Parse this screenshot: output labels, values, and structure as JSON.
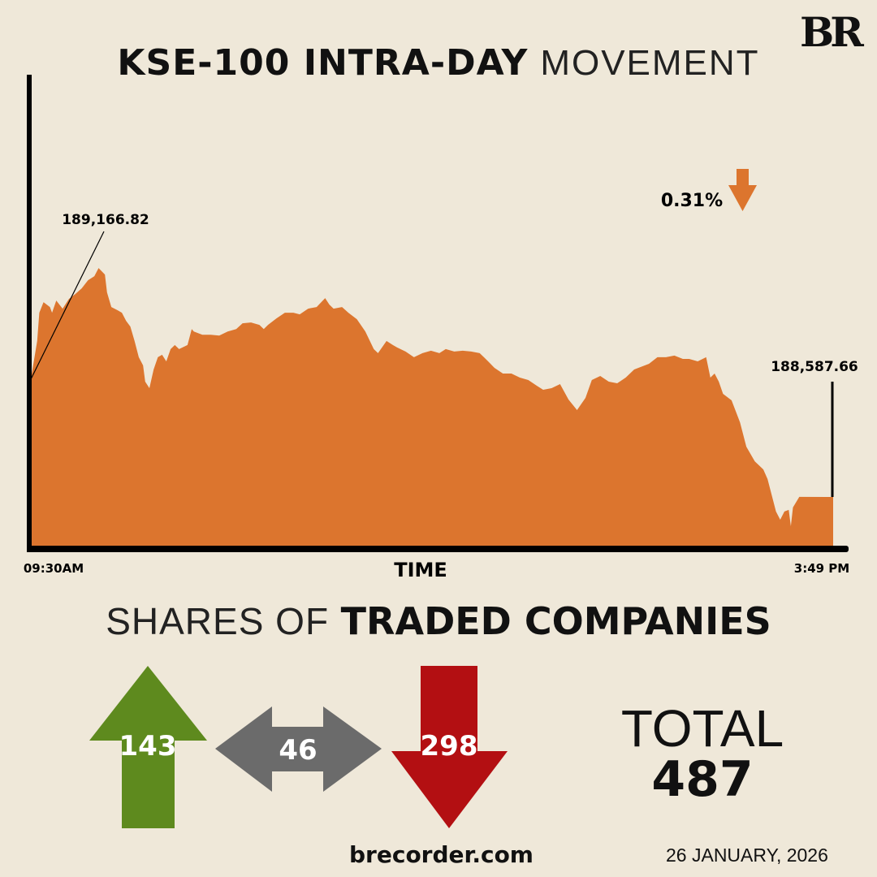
{
  "header": {
    "title_bold": "KSE-100 INTRA-DAY",
    "title_light": "MOVEMENT",
    "logo": "BR"
  },
  "colors": {
    "background": "#efe8d9",
    "area": "#dc752e",
    "up": "#5e8a1e",
    "unchanged": "#6b6b6b",
    "down": "#b30f12"
  },
  "chart_data": {
    "type": "area",
    "xlabel": "TIME",
    "ylabel": "",
    "x_tick_labels": [
      "09:30AM",
      "3:49 PM"
    ],
    "grid": false,
    "ylim": [
      188348,
      190653
    ],
    "annotations": {
      "open": "189,166.82",
      "close": "188,587.66",
      "change": "0.31%",
      "change_direction": "down-arrow-icon"
    },
    "series": [
      {
        "points": [
          [
            "09:30",
            189167
          ],
          [
            "09:33",
            189355
          ],
          [
            "09:34",
            189494
          ],
          [
            "09:36",
            189546
          ],
          [
            "09:39",
            189522
          ],
          [
            "09:40",
            189494
          ],
          [
            "09:42",
            189554
          ],
          [
            "09:45",
            189514
          ],
          [
            "09:48",
            189562
          ],
          [
            "09:51",
            189586
          ],
          [
            "09:54",
            189614
          ],
          [
            "09:57",
            189654
          ],
          [
            "10:00",
            189674
          ],
          [
            "10:02",
            189714
          ],
          [
            "10:05",
            189682
          ],
          [
            "10:06",
            189594
          ],
          [
            "10:08",
            189522
          ],
          [
            "10:11",
            189506
          ],
          [
            "10:13",
            189494
          ],
          [
            "10:15",
            189454
          ],
          [
            "10:17",
            189426
          ],
          [
            "10:19",
            189355
          ],
          [
            "10:21",
            189275
          ],
          [
            "10:23",
            189235
          ],
          [
            "10:24",
            189155
          ],
          [
            "10:26",
            189123
          ],
          [
            "10:28",
            189215
          ],
          [
            "10:30",
            189275
          ],
          [
            "10:32",
            189287
          ],
          [
            "10:34",
            189255
          ],
          [
            "10:36",
            189315
          ],
          [
            "10:38",
            189335
          ],
          [
            "10:40",
            189315
          ],
          [
            "10:44",
            189335
          ],
          [
            "10:46",
            189414
          ],
          [
            "10:47",
            189402
          ],
          [
            "10:51",
            189386
          ],
          [
            "10:55",
            189386
          ],
          [
            "10:59",
            189382
          ],
          [
            "11:03",
            189402
          ],
          [
            "11:07",
            189414
          ],
          [
            "11:10",
            189442
          ],
          [
            "11:14",
            189446
          ],
          [
            "11:18",
            189434
          ],
          [
            "11:20",
            189414
          ],
          [
            "11:22",
            189434
          ],
          [
            "11:26",
            189466
          ],
          [
            "11:30",
            189494
          ],
          [
            "11:34",
            189494
          ],
          [
            "11:37",
            189486
          ],
          [
            "11:41",
            189514
          ],
          [
            "11:45",
            189522
          ],
          [
            "11:49",
            189566
          ],
          [
            "11:51",
            189534
          ],
          [
            "11:53",
            189514
          ],
          [
            "11:57",
            189522
          ],
          [
            "12:00",
            189494
          ],
          [
            "12:04",
            189462
          ],
          [
            "12:08",
            189402
          ],
          [
            "12:12",
            189315
          ],
          [
            "12:14",
            189295
          ],
          [
            "12:18",
            189355
          ],
          [
            "12:21",
            189335
          ],
          [
            "12:23",
            189323
          ],
          [
            "12:27",
            189303
          ],
          [
            "12:31",
            189275
          ],
          [
            "12:35",
            189295
          ],
          [
            "12:39",
            189307
          ],
          [
            "12:43",
            189295
          ],
          [
            "12:46",
            189315
          ],
          [
            "12:50",
            189303
          ],
          [
            "12:54",
            189307
          ],
          [
            "12:58",
            189303
          ],
          [
            "13:02",
            189295
          ],
          [
            "13:04",
            189275
          ],
          [
            "13:06",
            189255
          ],
          [
            "13:09",
            189223
          ],
          [
            "13:13",
            189195
          ],
          [
            "13:17",
            189195
          ],
          [
            "13:21",
            189175
          ],
          [
            "13:25",
            189163
          ],
          [
            "13:29",
            189135
          ],
          [
            "13:32",
            189115
          ],
          [
            "13:36",
            189123
          ],
          [
            "13:40",
            189143
          ],
          [
            "13:44",
            189067
          ],
          [
            "13:48",
            189015
          ],
          [
            "13:52",
            189075
          ],
          [
            "13:55",
            189163
          ],
          [
            "13:59",
            189183
          ],
          [
            "14:03",
            189155
          ],
          [
            "14:07",
            189147
          ],
          [
            "14:11",
            189175
          ],
          [
            "14:15",
            189215
          ],
          [
            "14:18",
            189227
          ],
          [
            "14:22",
            189243
          ],
          [
            "14:26",
            189275
          ],
          [
            "14:30",
            189275
          ],
          [
            "14:34",
            189283
          ],
          [
            "14:38",
            189267
          ],
          [
            "14:41",
            189267
          ],
          [
            "14:45",
            189255
          ],
          [
            "14:49",
            189275
          ],
          [
            "14:51",
            189175
          ],
          [
            "14:53",
            189195
          ],
          [
            "14:55",
            189155
          ],
          [
            "14:57",
            189095
          ],
          [
            "15:01",
            189063
          ],
          [
            "15:05",
            188955
          ],
          [
            "15:08",
            188835
          ],
          [
            "15:12",
            188763
          ],
          [
            "15:16",
            188723
          ],
          [
            "15:18",
            188676
          ],
          [
            "15:20",
            188596
          ],
          [
            "15:22",
            188516
          ],
          [
            "15:24",
            188476
          ],
          [
            "15:26",
            188516
          ],
          [
            "15:28",
            188524
          ],
          [
            "15:29",
            188444
          ],
          [
            "15:30",
            188536
          ],
          [
            "15:33",
            188588
          ],
          [
            "15:49",
            188587.66
          ]
        ]
      }
    ]
  },
  "shares": {
    "title_light": "SHARES OF",
    "title_bold": "TRADED COMPANIES",
    "advanced": "143",
    "unchanged": "46",
    "declined": "298",
    "total_label": "TOTAL",
    "total_value": "487"
  },
  "footer": {
    "site": "brecorder.com",
    "date": "26 JANUARY, 2026"
  }
}
